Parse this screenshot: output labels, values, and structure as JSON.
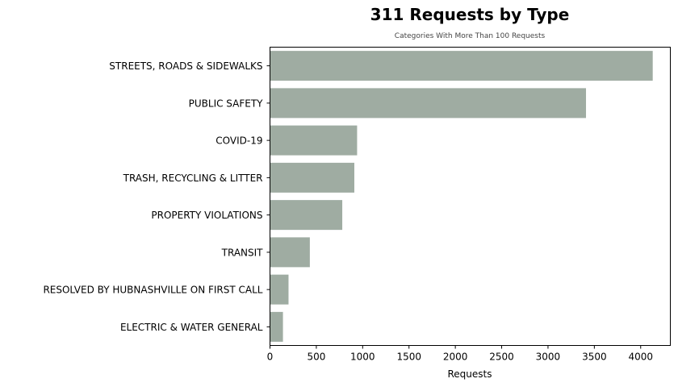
{
  "chart_data": {
    "type": "bar",
    "orientation": "horizontal",
    "title": "311 Requests by Type",
    "subtitle": "Categories With More Than 100 Requests",
    "xlabel": "Requests",
    "ylabel": "",
    "xlim": [
      0,
      4320
    ],
    "xticks": [
      0,
      500,
      1000,
      1500,
      2000,
      2500,
      3000,
      3500,
      4000
    ],
    "categories": [
      "STREETS, ROADS & SIDEWALKS",
      "PUBLIC SAFETY",
      "COVID-19",
      "TRASH, RECYCLING & LITTER",
      "PROPERTY VIOLATIONS",
      "TRANSIT",
      "RESOLVED BY HUBNASHVILLE ON FIRST CALL",
      "ELECTRIC & WATER GENERAL"
    ],
    "values": [
      4130,
      3410,
      940,
      910,
      780,
      430,
      200,
      140
    ],
    "bar_color": "#9faca2",
    "grid": false,
    "legend": "none"
  }
}
